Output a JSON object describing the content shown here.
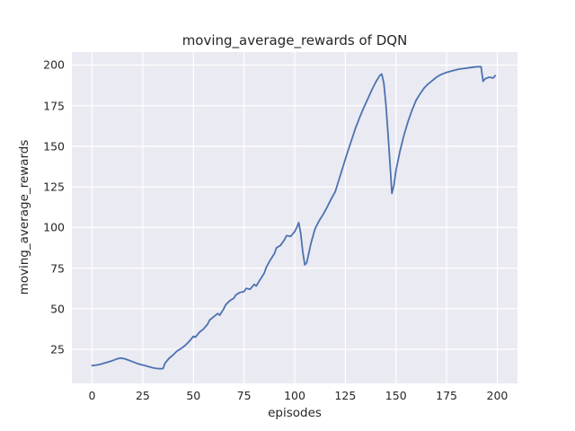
{
  "chart_data": {
    "type": "line",
    "title": "moving_average_rewards of DQN",
    "xlabel": "episodes",
    "ylabel": "moving_average_rewards",
    "series_name": "DQN moving average rewards",
    "xlim": [
      -10,
      210
    ],
    "ylim": [
      4,
      208
    ],
    "xticks": [
      0,
      25,
      50,
      75,
      100,
      125,
      150,
      175,
      200
    ],
    "yticks": [
      25,
      50,
      75,
      100,
      125,
      150,
      175,
      200
    ],
    "grid": true,
    "legend": false,
    "grid_color": "#ffffff",
    "plot_bg_color": "#eaeaf2",
    "figure_bg_color": "#ffffff",
    "line_color": "#4c72b0",
    "x": [
      0,
      2,
      4,
      6,
      8,
      10,
      12,
      14,
      16,
      18,
      20,
      22,
      24,
      26,
      28,
      30,
      32,
      34,
      35,
      36,
      38,
      40,
      42,
      44,
      46,
      48,
      50,
      51,
      53,
      55,
      57,
      58,
      60,
      62,
      63,
      65,
      66,
      68,
      70,
      71,
      73,
      75,
      76,
      78,
      80,
      81,
      83,
      85,
      86,
      88,
      90,
      91,
      93,
      95,
      96,
      98,
      100,
      101,
      102,
      103,
      104,
      105,
      106,
      108,
      110,
      112,
      114,
      116,
      118,
      120,
      122,
      124,
      126,
      128,
      130,
      132,
      134,
      136,
      138,
      140,
      142,
      143,
      144,
      145,
      146,
      147,
      148,
      149,
      150,
      152,
      154,
      156,
      158,
      160,
      162,
      164,
      166,
      168,
      170,
      172,
      175,
      178,
      181,
      184,
      187,
      190,
      192,
      193,
      194,
      196,
      198,
      199
    ],
    "y": [
      15,
      15.3,
      15.8,
      16.5,
      17.2,
      18,
      19,
      19.6,
      19.2,
      18.3,
      17.4,
      16.4,
      15.6,
      15,
      14.3,
      13.6,
      13.2,
      13,
      13.2,
      16.5,
      19.5,
      21.5,
      24,
      25.5,
      27.5,
      30,
      33,
      32.5,
      35.5,
      37.5,
      40.5,
      43,
      45,
      47,
      46,
      50,
      52.5,
      55,
      56.5,
      58.5,
      60,
      60.5,
      62.5,
      62,
      65,
      64,
      68,
      72,
      75.5,
      80,
      84,
      87.5,
      89,
      92.5,
      95,
      94.5,
      97.5,
      100,
      103,
      96,
      85,
      77,
      78.5,
      90,
      99,
      104,
      108,
      112.5,
      117.5,
      122,
      130,
      138,
      146,
      153.5,
      161,
      167.5,
      173.5,
      179,
      184.5,
      189.5,
      193.5,
      194.5,
      189,
      176,
      159,
      140,
      121,
      126,
      135,
      147,
      157,
      165.5,
      172.5,
      178.5,
      182.5,
      186,
      188.5,
      190.5,
      192.5,
      194,
      195.5,
      196.5,
      197.5,
      198,
      198.5,
      199,
      199,
      190,
      191.5,
      192.5,
      192,
      193.5
    ]
  }
}
